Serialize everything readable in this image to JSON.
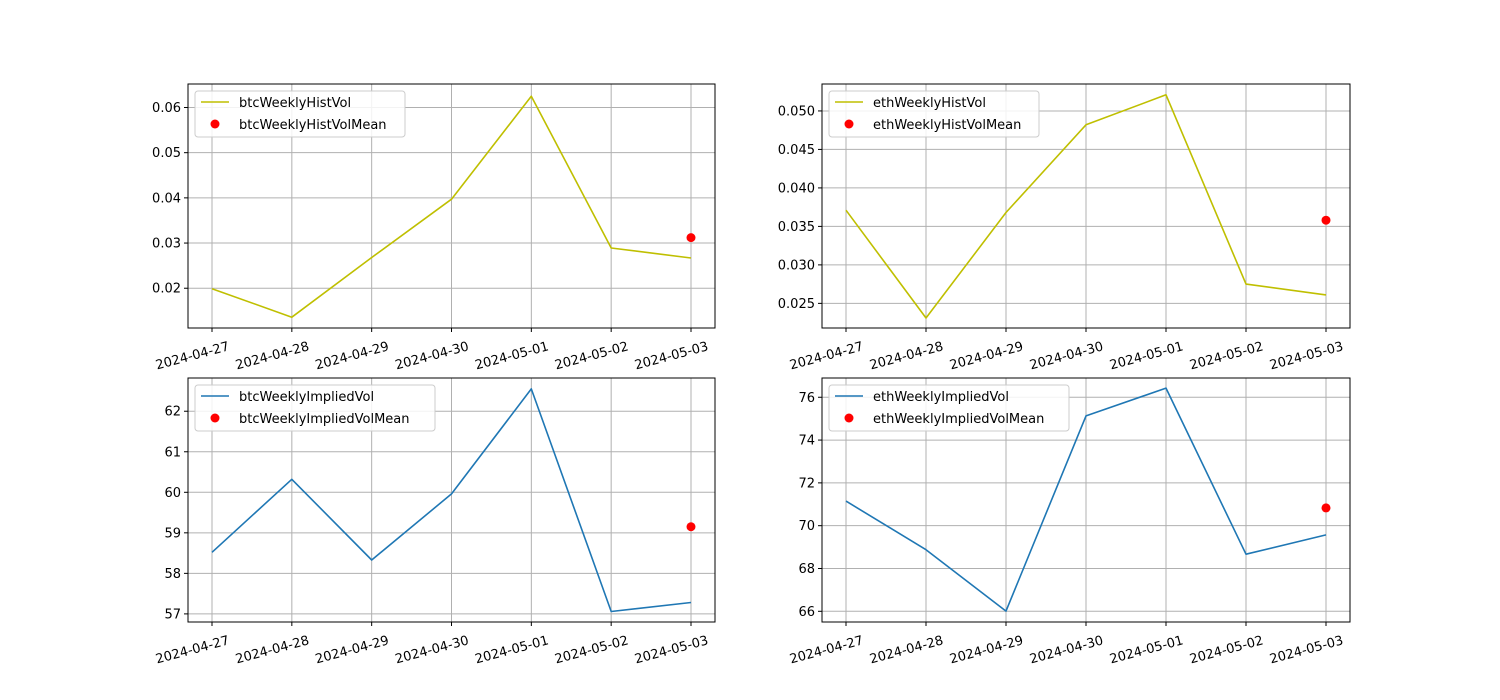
{
  "chart_data": [
    {
      "type": "line",
      "x": [
        "2024-04-27",
        "2024-04-28",
        "2024-04-29",
        "2024-04-30",
        "2024-05-01",
        "2024-05-02",
        "2024-05-03"
      ],
      "series": [
        {
          "name": "btcWeeklyHistVol",
          "kind": "line",
          "color": "#bfbf00",
          "values": [
            0.0199,
            0.0136,
            0.0268,
            0.0397,
            0.0625,
            0.0289,
            0.0267
          ]
        }
      ],
      "mean": {
        "name": "btcWeeklyHistVolMean",
        "kind": "scatter",
        "color": "#ff0000",
        "x": "2024-05-03",
        "value": 0.0312
      },
      "yticks": [
        0.02,
        0.03,
        0.04,
        0.05,
        0.06
      ],
      "ytick_labels": [
        "0.02",
        "0.03",
        "0.04",
        "0.05",
        "0.06"
      ],
      "ylim": [
        0.0112,
        0.0652
      ],
      "grid": true,
      "legend": "upper-left"
    },
    {
      "type": "line",
      "x": [
        "2024-04-27",
        "2024-04-28",
        "2024-04-29",
        "2024-04-30",
        "2024-05-01",
        "2024-05-02",
        "2024-05-03"
      ],
      "series": [
        {
          "name": "ethWeeklyHistVol",
          "kind": "line",
          "color": "#bfbf00",
          "values": [
            0.0371,
            0.0231,
            0.0368,
            0.0482,
            0.0521,
            0.0275,
            0.0261
          ]
        }
      ],
      "mean": {
        "name": "ethWeeklyHistVolMean",
        "kind": "scatter",
        "color": "#ff0000",
        "x": "2024-05-03",
        "value": 0.0358
      },
      "yticks": [
        0.025,
        0.03,
        0.035,
        0.04,
        0.045,
        0.05
      ],
      "ytick_labels": [
        "0.025",
        "0.030",
        "0.035",
        "0.040",
        "0.045",
        "0.050"
      ],
      "ylim": [
        0.0218,
        0.0535
      ],
      "grid": true,
      "legend": "upper-left"
    },
    {
      "type": "line",
      "x": [
        "2024-04-27",
        "2024-04-28",
        "2024-04-29",
        "2024-04-30",
        "2024-05-01",
        "2024-05-02",
        "2024-05-03"
      ],
      "series": [
        {
          "name": "btcWeeklyImpliedVol",
          "kind": "line",
          "color": "#1f77b4",
          "values": [
            58.52,
            60.32,
            58.33,
            59.96,
            62.55,
            57.06,
            57.28
          ]
        }
      ],
      "mean": {
        "name": "btcWeeklyImpliedVolMean",
        "kind": "scatter",
        "color": "#ff0000",
        "x": "2024-05-03",
        "value": 59.15
      },
      "yticks": [
        57,
        58,
        59,
        60,
        61,
        62
      ],
      "ytick_labels": [
        "57",
        "58",
        "59",
        "60",
        "61",
        "62"
      ],
      "ylim": [
        56.8,
        62.82
      ],
      "grid": true,
      "legend": "upper-left"
    },
    {
      "type": "line",
      "x": [
        "2024-04-27",
        "2024-04-28",
        "2024-04-29",
        "2024-04-30",
        "2024-05-01",
        "2024-05-02",
        "2024-05-03"
      ],
      "series": [
        {
          "name": "ethWeeklyImpliedVol",
          "kind": "line",
          "color": "#1f77b4",
          "values": [
            71.15,
            68.88,
            66.01,
            75.13,
            76.43,
            68.67,
            69.57
          ]
        }
      ],
      "mean": {
        "name": "ethWeeklyImpliedVolMean",
        "kind": "scatter",
        "color": "#ff0000",
        "x": "2024-05-03",
        "value": 70.83
      },
      "yticks": [
        66,
        68,
        70,
        72,
        74,
        76
      ],
      "ytick_labels": [
        "66",
        "68",
        "70",
        "72",
        "74",
        "76"
      ],
      "ylim": [
        65.5,
        76.9
      ],
      "grid": true,
      "legend": "upper-left"
    }
  ]
}
